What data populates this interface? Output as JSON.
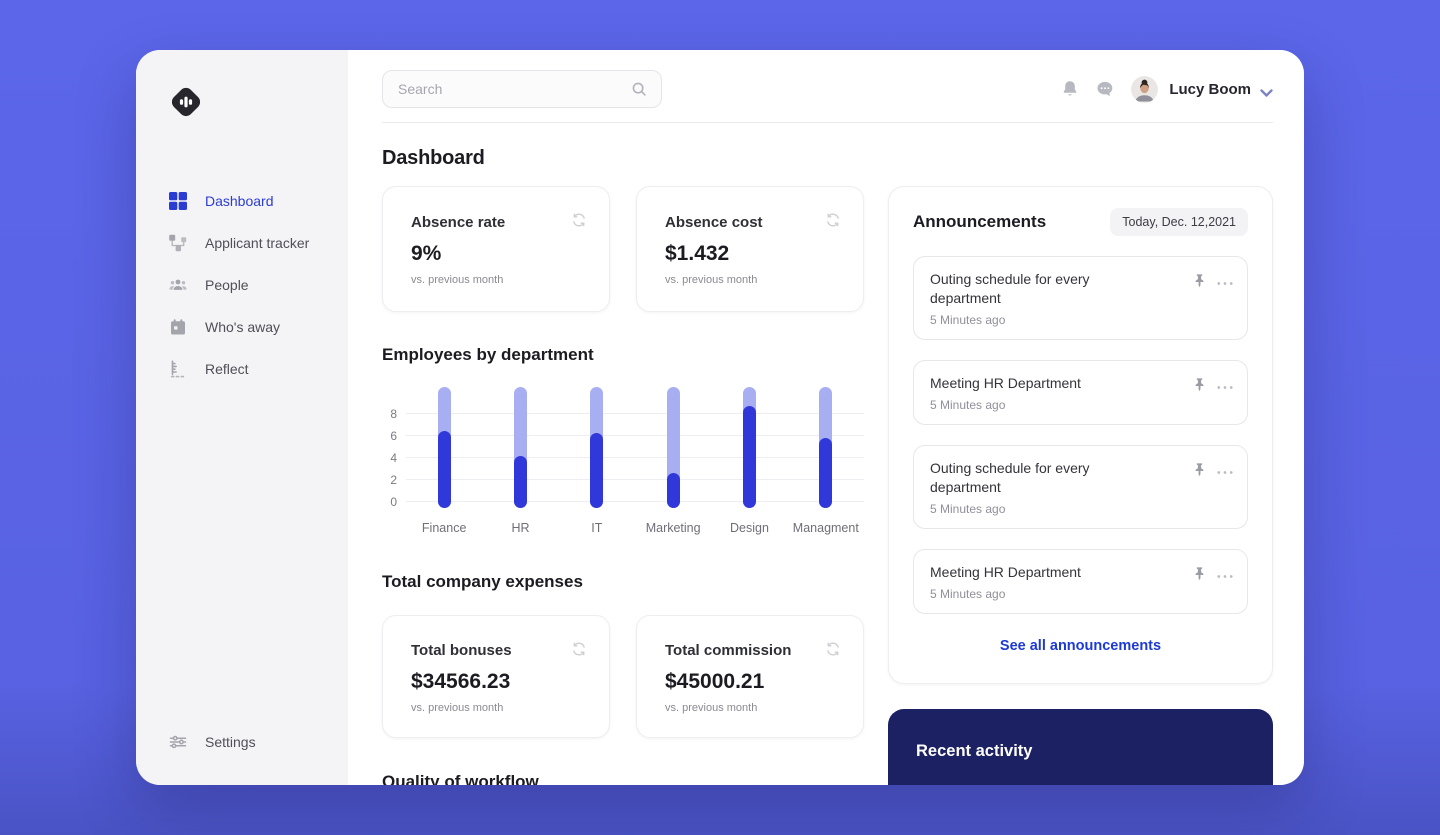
{
  "topbar": {
    "search_placeholder": "Search",
    "user_name": "Lucy Boom"
  },
  "sidebar": {
    "items": [
      {
        "label": "Dashboard",
        "icon": "grid",
        "active": true
      },
      {
        "label": "Applicant tracker",
        "icon": "sitemap",
        "active": false
      },
      {
        "label": "People",
        "icon": "people-group",
        "active": false
      },
      {
        "label": "Who's away",
        "icon": "calendar",
        "active": false
      },
      {
        "label": "Reflect",
        "icon": "ruler",
        "active": false
      }
    ],
    "settings_label": "Settings"
  },
  "page": {
    "title": "Dashboard"
  },
  "stats": [
    {
      "title": "Absence rate",
      "value": "9%",
      "caption": "vs. previous month"
    },
    {
      "title": "Absence cost",
      "value": "$1.432",
      "caption": "vs. previous month"
    }
  ],
  "chart_data": {
    "type": "bar",
    "title": "Employees by department",
    "categories": [
      "Finance",
      "HR",
      "IT",
      "Marketing",
      "Design",
      "Managment"
    ],
    "series": [
      {
        "name": "capacity-track",
        "values": [
          10,
          10,
          10,
          10,
          10,
          10
        ],
        "color": "#a7aff2"
      },
      {
        "name": "employees",
        "values": [
          6.5,
          4.2,
          6.3,
          2.6,
          8.7,
          5.8
        ],
        "color": "#3138d9"
      }
    ],
    "ylim": [
      0,
      10
    ],
    "yticks": [
      0,
      2,
      4,
      6,
      8
    ],
    "grid": true,
    "legend": false,
    "bar_style": "rounded pill, dark fill over light track"
  },
  "expenses": {
    "heading": "Total company expenses",
    "cards": [
      {
        "title": "Total bonuses",
        "value": "$34566.23",
        "caption": "vs. previous month"
      },
      {
        "title": "Total commission",
        "value": "$45000.21",
        "caption": "vs. previous month"
      }
    ]
  },
  "workflow": {
    "heading": "Quality of workflow"
  },
  "announcements": {
    "title": "Announcements",
    "date_badge": "Today, Dec. 12,2021",
    "items": [
      {
        "title": "Outing schedule for every department",
        "time": "5 Minutes ago"
      },
      {
        "title": "Meeting HR Department",
        "time": "5 Minutes ago"
      },
      {
        "title": "Outing schedule for every department",
        "time": "5 Minutes ago"
      },
      {
        "title": "Meeting HR Department",
        "time": "5 Minutes ago"
      }
    ],
    "see_all_label": "See all announcements"
  },
  "recent_activity": {
    "title": "Recent activity"
  },
  "colors": {
    "accent": "#2b3cd3",
    "background": "#5b66e9",
    "navy_panel": "#1b2162",
    "link": "#1d3ad4",
    "bar_fill": "#3138d9",
    "bar_track": "#a7aff2"
  }
}
